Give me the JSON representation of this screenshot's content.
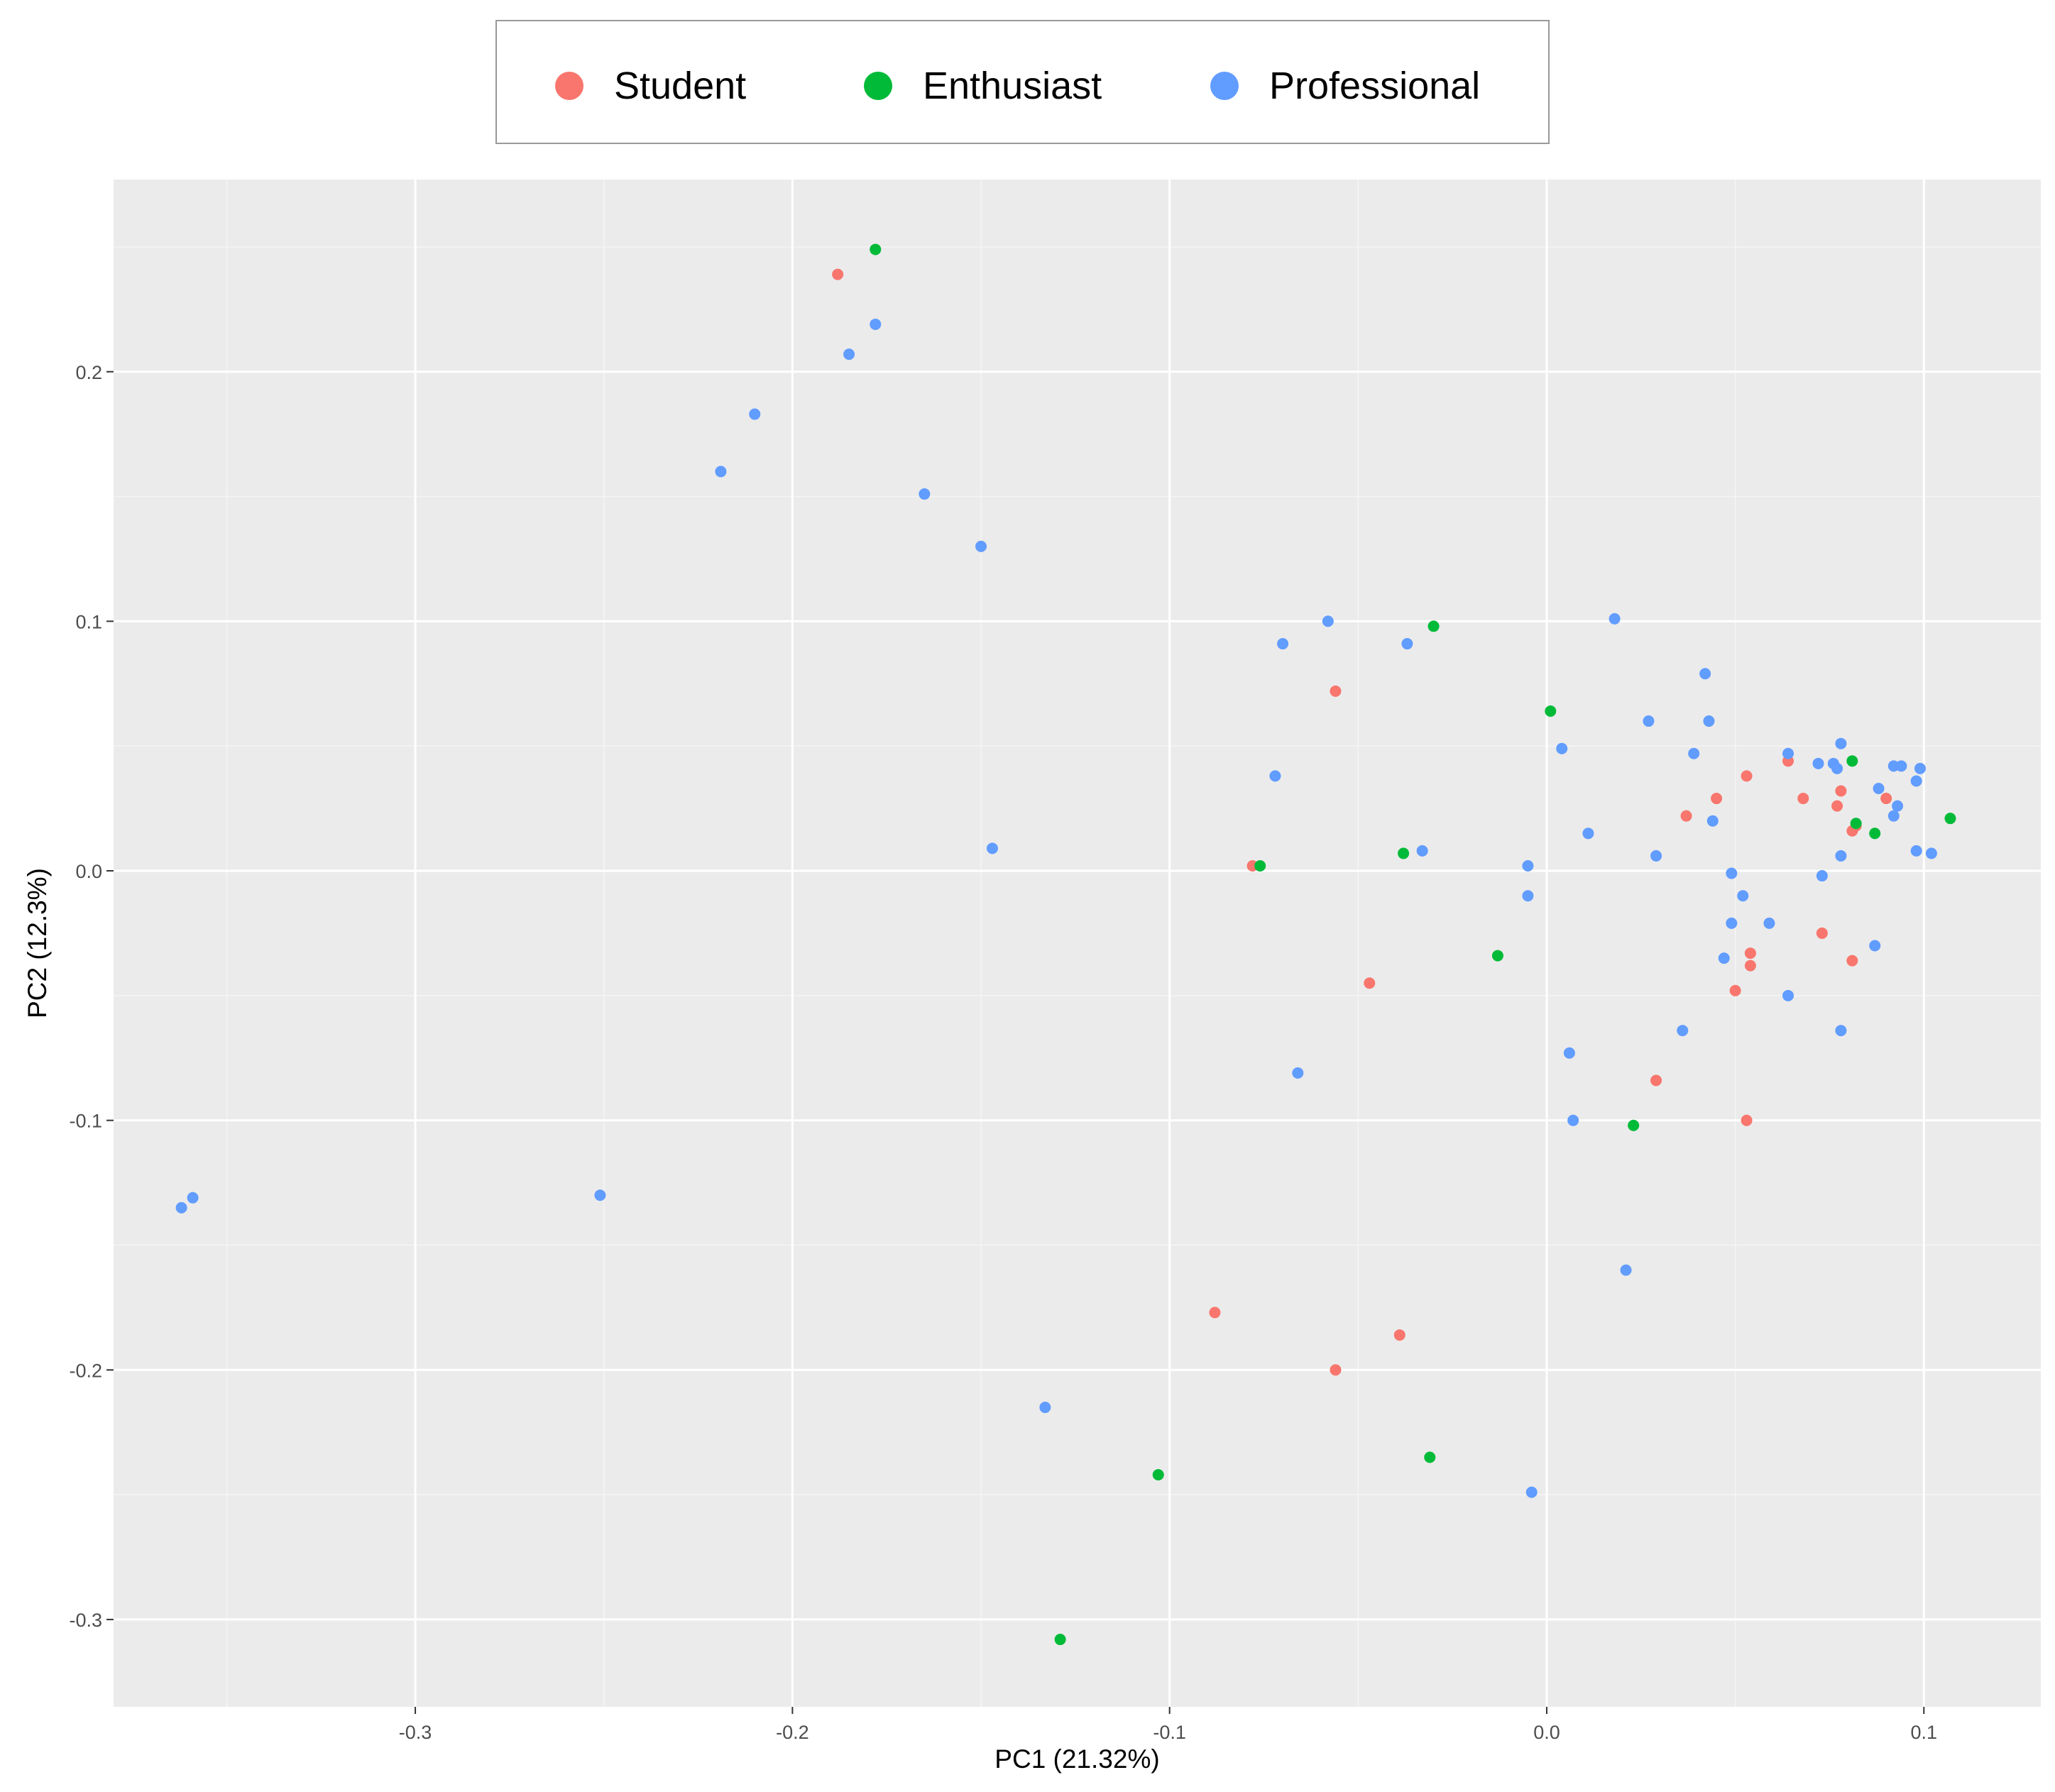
{
  "chart_data": {
    "type": "scatter",
    "xlabel": "PC1 (21.32%)",
    "ylabel": "PC2 (12.3%)",
    "xlim": [
      -0.38,
      0.131
    ],
    "ylim": [
      -0.335,
      0.277
    ],
    "x_ticks": [
      -0.3,
      -0.2,
      -0.1,
      0.0,
      0.1
    ],
    "x_tick_labels": [
      "-0.3",
      "-0.2",
      "-0.1",
      "0.0",
      "0.1"
    ],
    "y_ticks": [
      -0.3,
      -0.2,
      -0.1,
      0.0,
      0.1,
      0.2
    ],
    "y_tick_labels": [
      "-0.3",
      "-0.2",
      "-0.1",
      "0.0",
      "0.1",
      "0.2"
    ],
    "grid": true,
    "legend_position": "top",
    "series": [
      {
        "name": "Student",
        "color": "#F8766D",
        "points": [
          [
            -0.188,
            0.239
          ],
          [
            -0.056,
            0.072
          ],
          [
            -0.078,
            0.002
          ],
          [
            -0.047,
            -0.045
          ],
          [
            -0.088,
            -0.177
          ],
          [
            -0.039,
            -0.186
          ],
          [
            -0.056,
            -0.2
          ],
          [
            0.029,
            -0.084
          ],
          [
            0.053,
            -0.1
          ],
          [
            0.05,
            -0.048
          ],
          [
            0.054,
            -0.033
          ],
          [
            0.054,
            -0.038
          ],
          [
            0.037,
            0.022
          ],
          [
            0.045,
            0.029
          ],
          [
            0.053,
            0.038
          ],
          [
            0.064,
            0.044
          ],
          [
            0.068,
            0.029
          ],
          [
            0.077,
            0.026
          ],
          [
            0.078,
            0.032
          ],
          [
            0.081,
            0.016
          ],
          [
            0.082,
            0.018
          ],
          [
            0.09,
            0.029
          ],
          [
            0.073,
            -0.025
          ],
          [
            0.081,
            -0.036
          ]
        ]
      },
      {
        "name": "Enthusiast",
        "color": "#00BA38",
        "points": [
          [
            -0.178,
            0.249
          ],
          [
            -0.03,
            0.098
          ],
          [
            0.001,
            0.064
          ],
          [
            -0.076,
            0.002
          ],
          [
            -0.038,
            0.007
          ],
          [
            -0.013,
            -0.034
          ],
          [
            0.023,
            -0.102
          ],
          [
            -0.031,
            -0.235
          ],
          [
            -0.103,
            -0.242
          ],
          [
            -0.129,
            -0.308
          ],
          [
            0.081,
            0.044
          ],
          [
            0.082,
            0.019
          ],
          [
            0.087,
            0.015
          ],
          [
            0.107,
            0.021
          ]
        ]
      },
      {
        "name": "Professional",
        "color": "#619CFF",
        "points": [
          [
            -0.178,
            0.219
          ],
          [
            -0.185,
            0.207
          ],
          [
            -0.21,
            0.183
          ],
          [
            -0.219,
            0.16
          ],
          [
            -0.165,
            0.151
          ],
          [
            -0.15,
            0.13
          ],
          [
            -0.147,
            0.009
          ],
          [
            -0.058,
            0.1
          ],
          [
            -0.07,
            0.091
          ],
          [
            -0.037,
            0.091
          ],
          [
            -0.072,
            0.038
          ],
          [
            -0.033,
            0.008
          ],
          [
            -0.066,
            -0.081
          ],
          [
            -0.133,
            -0.215
          ],
          [
            -0.004,
            -0.249
          ],
          [
            -0.251,
            -0.13
          ],
          [
            -0.359,
            -0.131
          ],
          [
            -0.362,
            -0.135
          ],
          [
            0.018,
            0.101
          ],
          [
            0.042,
            0.079
          ],
          [
            0.027,
            0.06
          ],
          [
            0.043,
            0.06
          ],
          [
            0.004,
            0.049
          ],
          [
            0.039,
            0.047
          ],
          [
            0.044,
            0.02
          ],
          [
            0.011,
            0.015
          ],
          [
            0.029,
            0.006
          ],
          [
            -0.005,
            0.002
          ],
          [
            -0.005,
            -0.01
          ],
          [
            0.049,
            -0.001
          ],
          [
            0.052,
            -0.01
          ],
          [
            0.049,
            -0.021
          ],
          [
            0.047,
            -0.035
          ],
          [
            0.059,
            -0.021
          ],
          [
            0.064,
            -0.05
          ],
          [
            0.036,
            -0.064
          ],
          [
            0.006,
            -0.073
          ],
          [
            0.007,
            -0.1
          ],
          [
            0.021,
            -0.16
          ],
          [
            0.064,
            0.047
          ],
          [
            0.072,
            0.043
          ],
          [
            0.076,
            0.043
          ],
          [
            0.077,
            0.041
          ],
          [
            0.078,
            0.051
          ],
          [
            0.088,
            0.033
          ],
          [
            0.092,
            0.042
          ],
          [
            0.094,
            0.042
          ],
          [
            0.099,
            0.041
          ],
          [
            0.098,
            0.036
          ],
          [
            0.093,
            0.026
          ],
          [
            0.092,
            0.022
          ],
          [
            0.098,
            0.008
          ],
          [
            0.102,
            0.007
          ],
          [
            0.078,
            0.006
          ],
          [
            0.073,
            -0.002
          ],
          [
            0.087,
            -0.03
          ],
          [
            0.078,
            -0.064
          ]
        ]
      }
    ]
  }
}
